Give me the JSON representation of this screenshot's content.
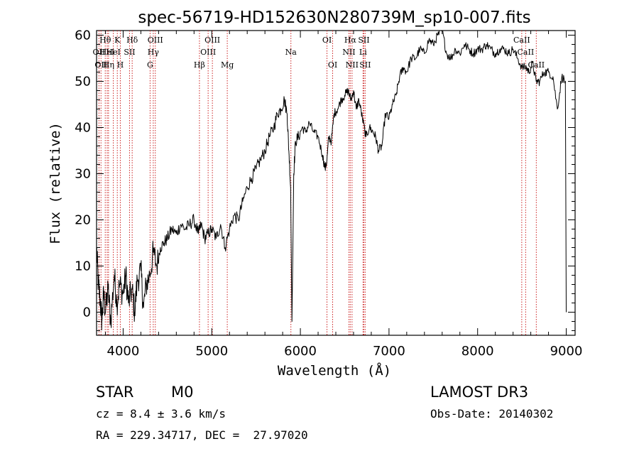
{
  "chart_data": {
    "type": "line",
    "title": "spec-56719-HD152630N280739M_sp10-007.fits",
    "xlabel": "Wavelength (Å)",
    "ylabel": "Flux (relative)",
    "xlim": [
      3700,
      9100
    ],
    "ylim": [
      -5,
      61
    ],
    "xticks": [
      {
        "value": 4000,
        "label": "4000"
      },
      {
        "value": 5000,
        "label": "5000"
      },
      {
        "value": 6000,
        "label": "6000"
      },
      {
        "value": 7000,
        "label": "7000"
      },
      {
        "value": 8000,
        "label": "8000"
      },
      {
        "value": 9000,
        "label": "9000"
      }
    ],
    "yticks": [
      {
        "value": 0,
        "label": "0"
      },
      {
        "value": 10,
        "label": "10"
      },
      {
        "value": 20,
        "label": "20"
      },
      {
        "value": 30,
        "label": "30"
      },
      {
        "value": 40,
        "label": "40"
      },
      {
        "value": 50,
        "label": "50"
      },
      {
        "value": 60,
        "label": "60"
      }
    ],
    "series": [
      {
        "name": "flux",
        "x": [
          3700,
          3720,
          3740,
          3760,
          3780,
          3800,
          3830,
          3860,
          3900,
          3930,
          3960,
          4000,
          4030,
          4060,
          4100,
          4130,
          4160,
          4200,
          4230,
          4260,
          4300,
          4340,
          4380,
          4420,
          4460,
          4500,
          4550,
          4600,
          4650,
          4700,
          4750,
          4800,
          4850,
          4880,
          4920,
          4960,
          5000,
          5050,
          5100,
          5150,
          5200,
          5250,
          5300,
          5350,
          5400,
          5450,
          5500,
          5550,
          5600,
          5650,
          5700,
          5740,
          5780,
          5820,
          5850,
          5870,
          5890,
          5905,
          5925,
          5945,
          5980,
          6020,
          6060,
          6100,
          6150,
          6200,
          6250,
          6280,
          6300,
          6320,
          6350,
          6380,
          6420,
          6460,
          6500,
          6540,
          6570,
          6600,
          6630,
          6660,
          6700,
          6740,
          6780,
          6820,
          6850,
          6880,
          6920,
          6960,
          7000,
          7040,
          7080,
          7120,
          7160,
          7200,
          7250,
          7300,
          7350,
          7400,
          7450,
          7500,
          7550,
          7600,
          7650,
          7700,
          7750,
          7800,
          7850,
          7900,
          7950,
          8000,
          8050,
          8100,
          8150,
          8200,
          8250,
          8300,
          8350,
          8400,
          8450,
          8500,
          8550,
          8580,
          8620,
          8660,
          8700,
          8750,
          8800,
          8850,
          8900,
          8950,
          8990,
          9000
        ],
        "y": [
          14,
          6,
          3,
          -2,
          4,
          0,
          5,
          -2,
          8,
          2,
          6,
          4,
          8,
          2,
          5,
          0,
          7,
          9,
          1,
          6,
          8,
          13,
          10,
          14,
          15,
          16,
          18,
          17,
          19,
          18,
          19,
          20,
          17,
          19,
          16,
          17,
          18,
          16,
          19,
          14,
          18,
          21,
          20,
          24,
          27,
          29,
          31,
          33,
          35,
          38,
          40,
          43,
          44,
          46,
          43,
          35,
          27,
          -2,
          30,
          37,
          38,
          40,
          39,
          41,
          39,
          38,
          34,
          31,
          33,
          38,
          37,
          43,
          44,
          46,
          47,
          48,
          46,
          48,
          44,
          46,
          42,
          38,
          40,
          39,
          38,
          35,
          36,
          43,
          42,
          45,
          47,
          51,
          53,
          52,
          55,
          55,
          57,
          56,
          59,
          58,
          60,
          61,
          56,
          55,
          57,
          56,
          58,
          57,
          56,
          57,
          57,
          58,
          57,
          56,
          57,
          57,
          56,
          57,
          55,
          53,
          53,
          52,
          54,
          50,
          50,
          52,
          52,
          51,
          44,
          51,
          50,
          0
        ]
      }
    ],
    "lines": [
      {
        "wavelength": 3727,
        "label": "OII",
        "row": 2
      },
      {
        "wavelength": 3750,
        "label": "OII",
        "row": 3
      },
      {
        "wavelength": 3798,
        "label": "Hθ",
        "row": 1
      },
      {
        "wavelength": 3820,
        "label": "HeI",
        "row": 2
      },
      {
        "wavelength": 3835,
        "label": "Hη",
        "row": 3
      },
      {
        "wavelength": 3889,
        "label": "HeI",
        "row": 2
      },
      {
        "wavelength": 3934,
        "label": "K",
        "row": 1
      },
      {
        "wavelength": 3968,
        "label": "H",
        "row": 3
      },
      {
        "wavelength": 4072,
        "label": "SII",
        "row": 2
      },
      {
        "wavelength": 4102,
        "label": "Hδ",
        "row": 1
      },
      {
        "wavelength": 4304,
        "label": "G",
        "row": 3
      },
      {
        "wavelength": 4340,
        "label": "Hγ",
        "row": 2
      },
      {
        "wavelength": 4363,
        "label": "OIII",
        "row": 1
      },
      {
        "wavelength": 4861,
        "label": "Hβ",
        "row": 3
      },
      {
        "wavelength": 4959,
        "label": "OIII",
        "row": 2
      },
      {
        "wavelength": 5007,
        "label": "OIII",
        "row": 1
      },
      {
        "wavelength": 5175,
        "label": "Mg",
        "row": 3
      },
      {
        "wavelength": 5893,
        "label": "Na",
        "row": 2
      },
      {
        "wavelength": 6300,
        "label": "OI",
        "row": 1
      },
      {
        "wavelength": 6364,
        "label": "OI",
        "row": 3
      },
      {
        "wavelength": 6548,
        "label": "NII",
        "row": 2
      },
      {
        "wavelength": 6563,
        "label": "Hα",
        "row": 1
      },
      {
        "wavelength": 6583,
        "label": "NII",
        "row": 3
      },
      {
        "wavelength": 6707,
        "label": "Li",
        "row": 2
      },
      {
        "wavelength": 6716,
        "label": "SII",
        "row": 1
      },
      {
        "wavelength": 6731,
        "label": "SII",
        "row": 3
      },
      {
        "wavelength": 8498,
        "label": "CaII",
        "row": 1
      },
      {
        "wavelength": 8542,
        "label": "CaII",
        "row": 2
      },
      {
        "wavelength": 8662,
        "label": "CaII",
        "row": 3
      }
    ],
    "colors": {
      "spectrum": "#000000",
      "line_marker": "#cc2222",
      "axes": "#000000"
    }
  },
  "info": {
    "class": "STAR",
    "subclass": "M0",
    "survey": "LAMOST DR3",
    "redshift": "cz = 8.4 ± 3.6 km/s",
    "obs_date": "Obs-Date: 20140302",
    "coords": "RA = 229.34717, DEC =  27.97020"
  }
}
